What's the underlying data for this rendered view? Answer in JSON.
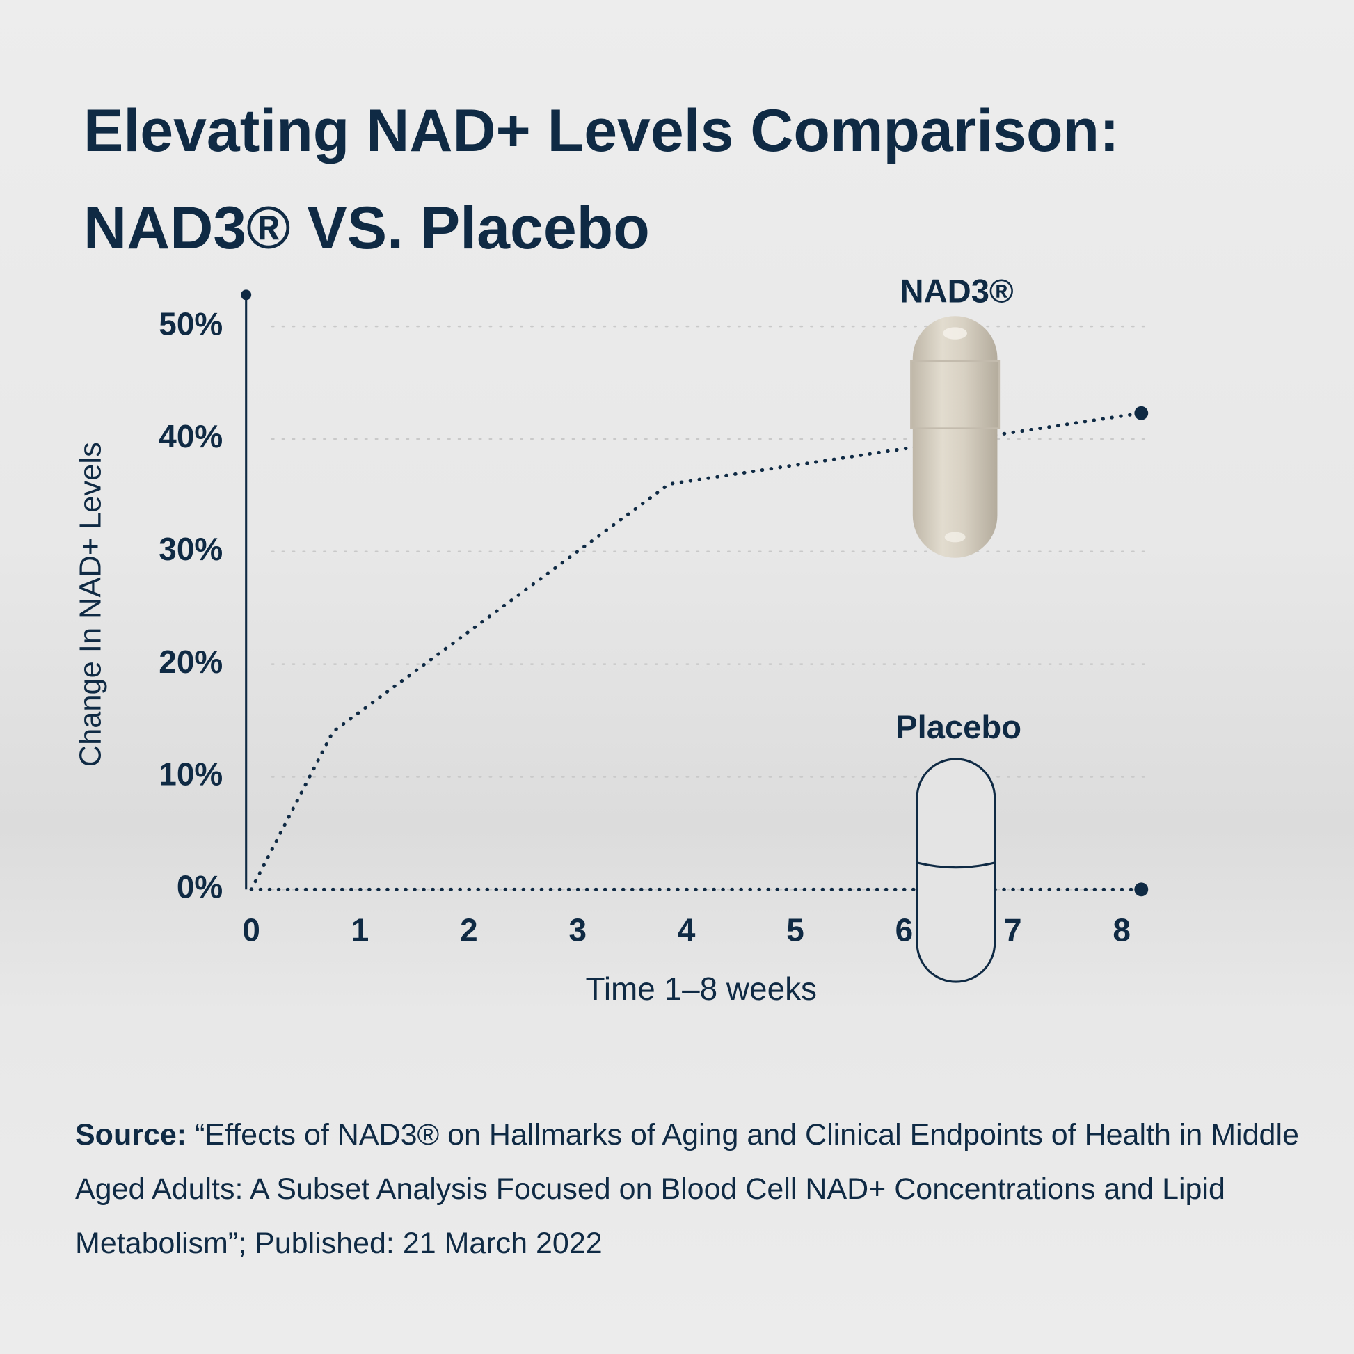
{
  "chart_data": {
    "type": "line",
    "title": "Elevating NAD+ Levels Comparison: NAD3® VS. Placebo",
    "xlabel": "Time 1–8 weeks",
    "ylabel": "Change In NAD+ Levels",
    "series": [
      {
        "name": "NAD3®",
        "color": "#0f2a44",
        "x": [
          0,
          0.75,
          3.84,
          8.18
        ],
        "values": [
          0,
          14,
          36,
          42.3
        ]
      },
      {
        "name": "Placebo",
        "color": "#0f2a44",
        "x": [
          0,
          8.18
        ],
        "values": [
          0,
          0
        ]
      }
    ],
    "xlim": [
      0,
      8.3
    ],
    "xticks": [
      0,
      1,
      2,
      3,
      4,
      5,
      6,
      7,
      8
    ],
    "ylim": [
      0,
      52.8
    ],
    "yticks": [
      {
        "value": 0,
        "label": "0%"
      },
      {
        "value": 10,
        "label": "10%"
      },
      {
        "value": 20,
        "label": "20%"
      },
      {
        "value": 30,
        "label": "30%"
      },
      {
        "value": 40,
        "label": "40%"
      },
      {
        "value": 50,
        "label": "50%"
      }
    ],
    "grid": true,
    "source_label": "Source:",
    "source": "“Effects of NAD3® on Hallmarks of Aging and Clinical Endpoints of Health in Middle Aged Adults: A Subset Analysis Focused on Blood Cell NAD+ Concentrations and Lipid Metabolism”; Published: 21 March 2022"
  }
}
